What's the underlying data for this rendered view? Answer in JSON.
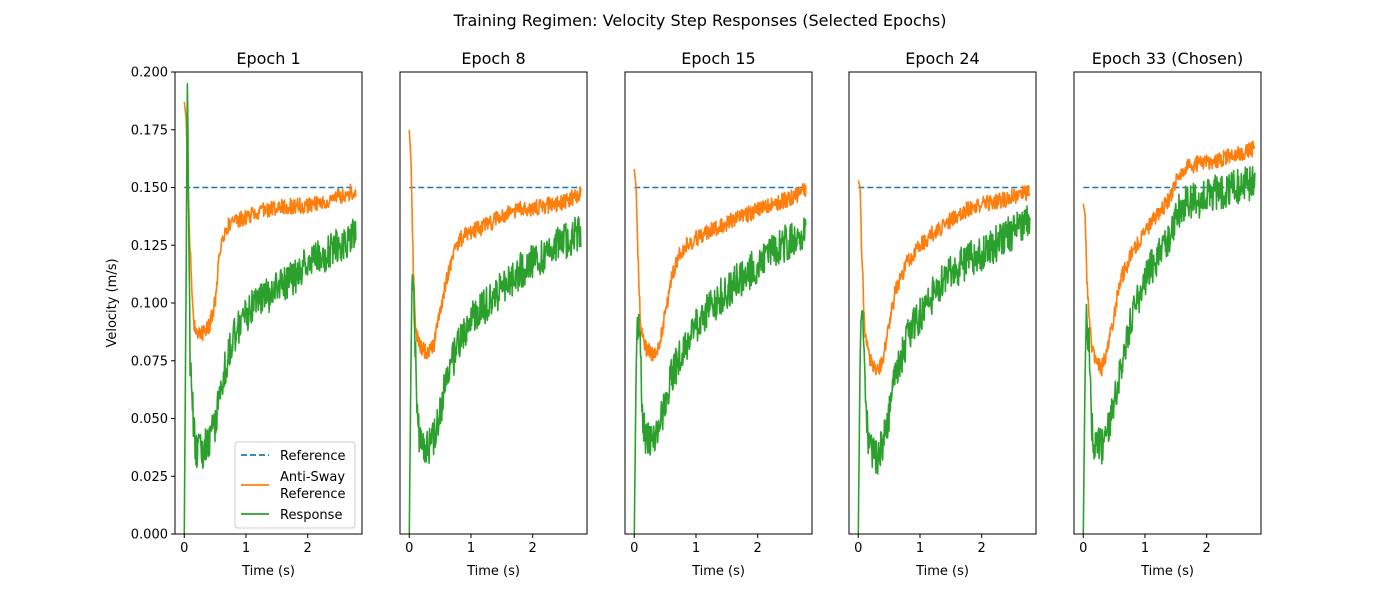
{
  "figure_title": "Training Regimen: Velocity Step Responses (Selected Epochs)",
  "colors": {
    "reference": "#1f77b4",
    "anti_sway": "#ff7f0e",
    "response": "#2ca02c"
  },
  "legend": {
    "entries": [
      "Reference",
      "Anti-Sway Reference",
      "Response"
    ],
    "placement": "lower right",
    "panel": 0
  },
  "chart_data": [
    {
      "type": "line",
      "title": "Epoch 1",
      "xlabel": "Time (s)",
      "ylabel": "Velocity (m/s)",
      "xlim": [
        -0.15,
        2.88
      ],
      "ylim": [
        0,
        0.2
      ],
      "xticks": [
        "0",
        "1",
        "2"
      ],
      "yticks": [
        "0.000",
        "0.025",
        "0.050",
        "0.075",
        "0.100",
        "0.125",
        "0.150",
        "0.175",
        "0.200"
      ],
      "series": [
        {
          "name": "Reference",
          "style": "dashed",
          "x": [
            0,
            2.78
          ],
          "y": [
            0.15,
            0.15
          ]
        },
        {
          "name": "Anti-Sway Reference",
          "x": [
            0,
            0.03,
            0.06,
            0.1,
            0.15,
            0.2,
            0.3,
            0.4,
            0.5,
            0.55,
            0.6,
            0.7,
            0.8,
            1.0,
            1.2,
            1.4,
            1.6,
            1.8,
            2.0,
            2.2,
            2.4,
            2.6,
            2.78
          ],
          "y": [
            0.187,
            0.18,
            0.15,
            0.12,
            0.09,
            0.087,
            0.087,
            0.09,
            0.1,
            0.115,
            0.127,
            0.133,
            0.135,
            0.137,
            0.139,
            0.141,
            0.142,
            0.142,
            0.142,
            0.144,
            0.145,
            0.147,
            0.149
          ]
        },
        {
          "name": "Response",
          "x": [
            0,
            0.03,
            0.05,
            0.08,
            0.1,
            0.12,
            0.15,
            0.2,
            0.3,
            0.4,
            0.5,
            0.6,
            0.8,
            1.0,
            1.2,
            1.4,
            1.6,
            1.8,
            2.0,
            2.2,
            2.4,
            2.6,
            2.78
          ],
          "y": [
            0.0,
            0.11,
            0.2,
            0.11,
            0.065,
            0.07,
            0.045,
            0.036,
            0.036,
            0.04,
            0.048,
            0.065,
            0.085,
            0.095,
            0.1,
            0.104,
            0.107,
            0.112,
            0.117,
            0.12,
            0.124,
            0.127,
            0.129
          ]
        }
      ]
    },
    {
      "type": "line",
      "title": "Epoch 8",
      "xlabel": "Time (s)",
      "xlim": [
        -0.15,
        2.88
      ],
      "ylim": [
        0,
        0.2
      ],
      "xticks": [
        "0",
        "1",
        "2"
      ],
      "series": [
        {
          "name": "Reference",
          "style": "dashed",
          "x": [
            0,
            2.78
          ],
          "y": [
            0.15,
            0.15
          ]
        },
        {
          "name": "Anti-Sway Reference",
          "x": [
            0,
            0.03,
            0.06,
            0.1,
            0.15,
            0.2,
            0.3,
            0.4,
            0.5,
            0.6,
            0.7,
            0.8,
            1.0,
            1.2,
            1.4,
            1.6,
            1.8,
            2.0,
            2.2,
            2.4,
            2.6,
            2.78
          ],
          "y": [
            0.175,
            0.16,
            0.12,
            0.09,
            0.083,
            0.08,
            0.078,
            0.082,
            0.095,
            0.11,
            0.12,
            0.127,
            0.131,
            0.133,
            0.136,
            0.139,
            0.141,
            0.141,
            0.142,
            0.143,
            0.145,
            0.148
          ]
        },
        {
          "name": "Response",
          "x": [
            0,
            0.03,
            0.05,
            0.08,
            0.1,
            0.13,
            0.17,
            0.2,
            0.3,
            0.4,
            0.5,
            0.6,
            0.8,
            1.0,
            1.2,
            1.4,
            1.6,
            1.8,
            2.0,
            2.2,
            2.4,
            2.6,
            2.78
          ],
          "y": [
            0.0,
            0.08,
            0.12,
            0.095,
            0.08,
            0.05,
            0.04,
            0.037,
            0.037,
            0.042,
            0.052,
            0.068,
            0.082,
            0.092,
            0.098,
            0.104,
            0.108,
            0.114,
            0.118,
            0.121,
            0.125,
            0.128,
            0.131
          ]
        }
      ]
    },
    {
      "type": "line",
      "title": "Epoch 15",
      "xlabel": "Time (s)",
      "xlim": [
        -0.15,
        2.88
      ],
      "ylim": [
        0,
        0.2
      ],
      "xticks": [
        "0",
        "1",
        "2"
      ],
      "series": [
        {
          "name": "Reference",
          "style": "dashed",
          "x": [
            0,
            2.78
          ],
          "y": [
            0.15,
            0.15
          ]
        },
        {
          "name": "Anti-Sway Reference",
          "x": [
            0,
            0.03,
            0.06,
            0.1,
            0.15,
            0.2,
            0.3,
            0.4,
            0.5,
            0.6,
            0.7,
            0.8,
            1.0,
            1.2,
            1.4,
            1.6,
            1.8,
            2.0,
            2.2,
            2.4,
            2.6,
            2.78
          ],
          "y": [
            0.158,
            0.15,
            0.12,
            0.09,
            0.083,
            0.08,
            0.078,
            0.082,
            0.095,
            0.11,
            0.119,
            0.124,
            0.128,
            0.131,
            0.133,
            0.136,
            0.138,
            0.14,
            0.142,
            0.144,
            0.146,
            0.149
          ]
        },
        {
          "name": "Response",
          "x": [
            0,
            0.03,
            0.05,
            0.08,
            0.1,
            0.13,
            0.17,
            0.2,
            0.3,
            0.4,
            0.5,
            0.6,
            0.8,
            1.0,
            1.2,
            1.4,
            1.6,
            1.8,
            2.0,
            2.2,
            2.4,
            2.6,
            2.78
          ],
          "y": [
            0.0,
            0.07,
            0.095,
            0.085,
            0.078,
            0.05,
            0.043,
            0.04,
            0.04,
            0.046,
            0.055,
            0.068,
            0.08,
            0.09,
            0.097,
            0.103,
            0.108,
            0.112,
            0.117,
            0.121,
            0.125,
            0.129,
            0.132
          ]
        }
      ]
    },
    {
      "type": "line",
      "title": "Epoch 24",
      "xlabel": "Time (s)",
      "xlim": [
        -0.15,
        2.88
      ],
      "ylim": [
        0,
        0.2
      ],
      "xticks": [
        "0",
        "1",
        "2"
      ],
      "series": [
        {
          "name": "Reference",
          "style": "dashed",
          "x": [
            0,
            2.78
          ],
          "y": [
            0.15,
            0.15
          ]
        },
        {
          "name": "Anti-Sway Reference",
          "x": [
            0,
            0.03,
            0.06,
            0.1,
            0.15,
            0.2,
            0.3,
            0.4,
            0.5,
            0.6,
            0.8,
            1.0,
            1.2,
            1.4,
            1.6,
            1.8,
            2.0,
            2.2,
            2.4,
            2.6,
            2.78
          ],
          "y": [
            0.153,
            0.15,
            0.12,
            0.09,
            0.08,
            0.075,
            0.07,
            0.075,
            0.09,
            0.105,
            0.118,
            0.125,
            0.13,
            0.134,
            0.138,
            0.141,
            0.143,
            0.144,
            0.145,
            0.147,
            0.148
          ]
        },
        {
          "name": "Response",
          "x": [
            0,
            0.03,
            0.05,
            0.08,
            0.1,
            0.13,
            0.17,
            0.2,
            0.3,
            0.4,
            0.5,
            0.6,
            0.8,
            1.0,
            1.2,
            1.4,
            1.6,
            1.8,
            2.0,
            2.2,
            2.4,
            2.6,
            2.78
          ],
          "y": [
            0.0,
            0.075,
            0.1,
            0.09,
            0.08,
            0.05,
            0.04,
            0.037,
            0.033,
            0.04,
            0.052,
            0.068,
            0.085,
            0.095,
            0.103,
            0.11,
            0.115,
            0.119,
            0.122,
            0.125,
            0.129,
            0.132,
            0.135
          ]
        }
      ]
    },
    {
      "type": "line",
      "title": "Epoch 33 (Chosen)",
      "xlabel": "Time (s)",
      "xlim": [
        -0.15,
        2.88
      ],
      "ylim": [
        0,
        0.2
      ],
      "xticks": [
        "0",
        "1",
        "2"
      ],
      "series": [
        {
          "name": "Reference",
          "style": "dashed",
          "x": [
            0,
            2.78
          ],
          "y": [
            0.15,
            0.15
          ]
        },
        {
          "name": "Anti-Sway Reference",
          "x": [
            0,
            0.03,
            0.06,
            0.1,
            0.15,
            0.2,
            0.3,
            0.4,
            0.5,
            0.6,
            0.8,
            1.0,
            1.2,
            1.4,
            1.5,
            1.6,
            1.8,
            2.0,
            2.2,
            2.4,
            2.6,
            2.78
          ],
          "y": [
            0.143,
            0.138,
            0.11,
            0.09,
            0.08,
            0.075,
            0.072,
            0.08,
            0.095,
            0.11,
            0.122,
            0.131,
            0.138,
            0.145,
            0.152,
            0.158,
            0.16,
            0.161,
            0.162,
            0.164,
            0.165,
            0.167
          ]
        },
        {
          "name": "Response",
          "x": [
            0,
            0.03,
            0.05,
            0.08,
            0.1,
            0.13,
            0.17,
            0.2,
            0.3,
            0.4,
            0.5,
            0.6,
            0.8,
            1.0,
            1.2,
            1.4,
            1.5,
            1.6,
            1.8,
            2.0,
            2.2,
            2.4,
            2.6,
            2.78
          ],
          "y": [
            0.0,
            0.07,
            0.095,
            0.085,
            0.08,
            0.05,
            0.04,
            0.038,
            0.038,
            0.046,
            0.058,
            0.072,
            0.095,
            0.11,
            0.12,
            0.13,
            0.137,
            0.142,
            0.144,
            0.146,
            0.148,
            0.15,
            0.151,
            0.152
          ]
        }
      ]
    }
  ]
}
